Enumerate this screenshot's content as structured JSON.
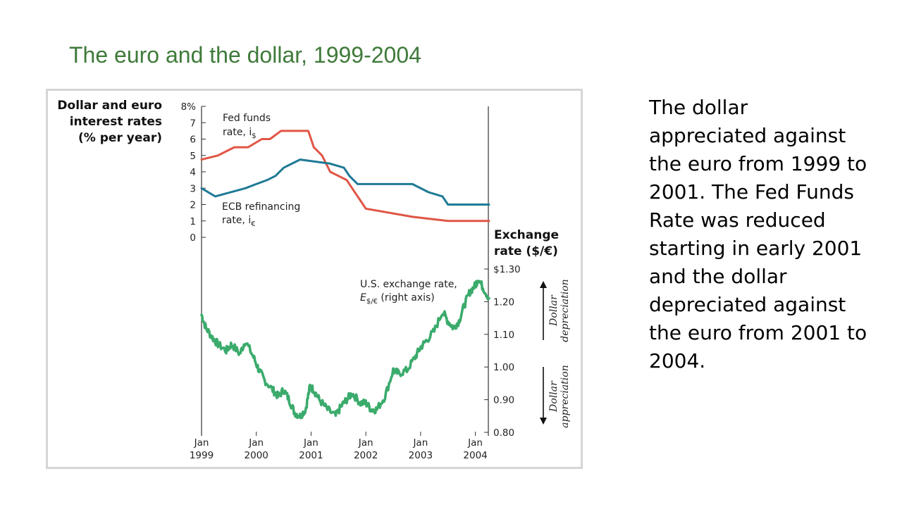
{
  "slide": {
    "title": "The euro and the dollar, 1999-2004",
    "body": "The dollar appreciated against the euro from 1999 to 2001. The Fed Funds Rate was reduced starting in early 2001 and the dollar depreciated against the euro from 2001 to 2004."
  },
  "colors": {
    "title": "#3f7a3a",
    "fed": "#e05545",
    "ecb": "#1e7a96",
    "fx": "#3bab6c",
    "axis": "#333333"
  },
  "chart_data": {
    "type": "line",
    "x_ticks": [
      {
        "top": "Jan",
        "bottom": "1999",
        "t": 1999.0
      },
      {
        "top": "Jan",
        "bottom": "2000",
        "t": 2000.0
      },
      {
        "top": "Jan",
        "bottom": "2001",
        "t": 2001.0
      },
      {
        "top": "Jan",
        "bottom": "2002",
        "t": 2002.0
      },
      {
        "top": "Jan",
        "bottom": "2003",
        "t": 2003.0
      },
      {
        "top": "Jan",
        "bottom": "2004",
        "t": 2004.0
      }
    ],
    "xlim": [
      1999.0,
      2004.25
    ],
    "left_axis": {
      "label_lines": [
        "Dollar and euro",
        "interest rates",
        "(% per year)"
      ],
      "ticks": [
        "0",
        "1",
        "2",
        "3",
        "4",
        "5",
        "6",
        "7",
        "8%"
      ],
      "ylim": [
        0,
        8
      ]
    },
    "right_axis": {
      "label_lines": [
        "Exchange",
        "rate ($/€)"
      ],
      "ticks": [
        "0.80",
        "0.90",
        "1.00",
        "1.10",
        "1.20",
        "$1.30"
      ],
      "ylim": [
        0.8,
        1.3
      ]
    },
    "series": [
      {
        "name": "Fed funds rate",
        "axis": "left",
        "step": true,
        "t": [
          1999.0,
          1999.3,
          1999.45,
          1999.6,
          1999.85,
          2000.1,
          2000.25,
          2000.45,
          2000.95,
          2001.05,
          2001.2,
          2001.35,
          2001.5,
          2001.65,
          2001.75,
          2001.85,
          2001.95,
          2002.0,
          2002.85,
          2003.5,
          2004.25
        ],
        "values": [
          4.75,
          5.0,
          5.25,
          5.5,
          5.5,
          6.0,
          6.0,
          6.5,
          6.5,
          5.5,
          5.0,
          4.0,
          3.75,
          3.5,
          3.0,
          2.5,
          2.0,
          1.75,
          1.25,
          1.0,
          1.0
        ]
      },
      {
        "name": "ECB refinancing rate",
        "axis": "left",
        "step": true,
        "t": [
          1999.0,
          1999.25,
          1999.8,
          2000.0,
          2000.2,
          2000.35,
          2000.5,
          2000.65,
          2000.8,
          2001.35,
          2001.6,
          2001.7,
          2001.85,
          2002.85,
          2003.15,
          2003.4,
          2003.5,
          2004.25
        ],
        "values": [
          3.0,
          2.5,
          3.0,
          3.25,
          3.5,
          3.75,
          4.25,
          4.5,
          4.75,
          4.5,
          4.25,
          3.75,
          3.25,
          3.25,
          2.75,
          2.5,
          2.0,
          2.0
        ]
      },
      {
        "name": "U.S. exchange rate",
        "axis": "right",
        "step": false,
        "t": [
          1999.0,
          1999.08,
          1999.2,
          1999.3,
          1999.45,
          1999.55,
          1999.7,
          1999.8,
          1999.95,
          2000.05,
          2000.15,
          2000.3,
          2000.4,
          2000.5,
          2000.6,
          2000.7,
          2000.8,
          2000.9,
          2000.98,
          2001.05,
          2001.15,
          2001.3,
          2001.45,
          2001.55,
          2001.65,
          2001.75,
          2001.9,
          2002.0,
          2002.1,
          2002.2,
          2002.35,
          2002.5,
          2002.6,
          2002.75,
          2002.9,
          2003.0,
          2003.1,
          2003.25,
          2003.4,
          2003.5,
          2003.6,
          2003.7,
          2003.8,
          2003.9,
          2004.0,
          2004.05,
          2004.15,
          2004.25
        ],
        "values": [
          1.16,
          1.12,
          1.09,
          1.07,
          1.05,
          1.07,
          1.04,
          1.08,
          1.03,
          0.99,
          0.96,
          0.93,
          0.91,
          0.93,
          0.9,
          0.86,
          0.85,
          0.87,
          0.94,
          0.93,
          0.9,
          0.87,
          0.85,
          0.88,
          0.9,
          0.92,
          0.89,
          0.89,
          0.87,
          0.87,
          0.91,
          0.99,
          0.98,
          0.99,
          1.03,
          1.06,
          1.08,
          1.11,
          1.17,
          1.14,
          1.12,
          1.14,
          1.19,
          1.23,
          1.25,
          1.27,
          1.24,
          1.21
        ]
      }
    ],
    "annotations": {
      "fed_lines": [
        "Fed funds",
        "rate, i"
      ],
      "ecb_lines": [
        "ECB refinancing",
        "rate, i"
      ],
      "sub_dollar": "$",
      "sub_euro": "€",
      "fx_line1": "U.S. exchange rate,",
      "fx_E": "E",
      "fx_sub": "$/€",
      "fx_rest": " (right axis)",
      "dep_lines": [
        "Dollar",
        "depreciation"
      ],
      "app_lines": [
        "Dollar",
        "appreciation"
      ]
    }
  }
}
